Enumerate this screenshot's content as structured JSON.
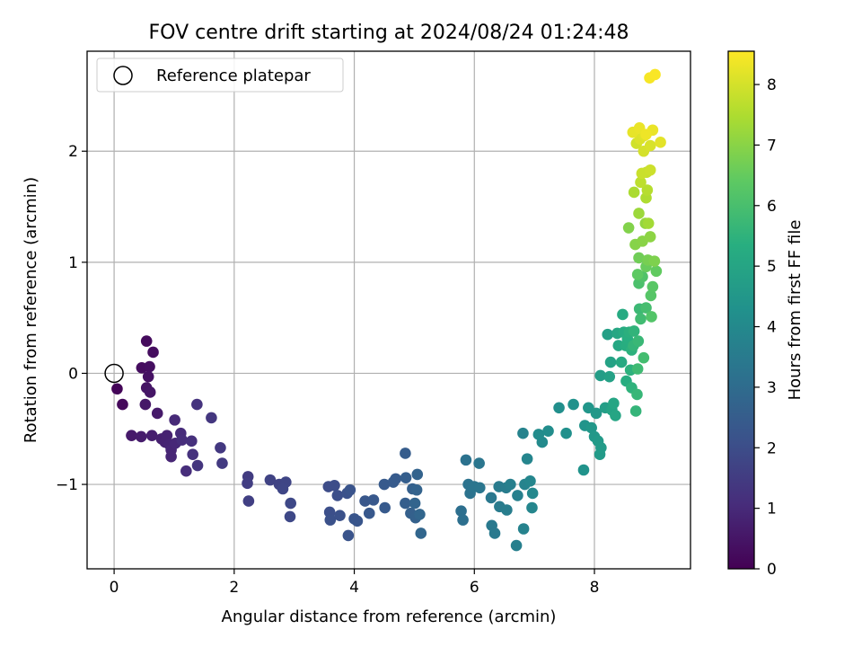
{
  "chart_data": {
    "type": "scatter",
    "title": "FOV centre drift starting at 2024/08/24 01:24:48",
    "xlabel": "Angular distance from reference (arcmin)",
    "ylabel": "Rotation from reference (arcmin)",
    "colorbar_label": "Hours from first FF file",
    "colormap": "viridis",
    "xlim": [
      -0.45,
      9.6
    ],
    "ylim": [
      -1.76,
      2.9
    ],
    "clim": [
      0,
      8.55
    ],
    "xticks": [
      0,
      2,
      4,
      6,
      8
    ],
    "yticks": [
      -1,
      0,
      1,
      2
    ],
    "colorbar_ticks": [
      0,
      1,
      2,
      3,
      4,
      5,
      6,
      7,
      8
    ],
    "grid": true,
    "legend": {
      "placement": "top-left",
      "entries": [
        "Reference platepar"
      ]
    },
    "reference_point": {
      "x": 0,
      "y": 0
    },
    "points": [
      [
        0.05,
        -0.14,
        0.1
      ],
      [
        0.14,
        -0.28,
        0.2
      ],
      [
        0.54,
        0.29,
        0.25
      ],
      [
        0.65,
        0.19,
        0.3
      ],
      [
        0.46,
        0.05,
        0.3
      ],
      [
        0.59,
        0.06,
        0.35
      ],
      [
        0.57,
        -0.03,
        0.4
      ],
      [
        0.54,
        -0.13,
        0.45
      ],
      [
        0.6,
        -0.17,
        0.5
      ],
      [
        0.52,
        -0.28,
        0.55
      ],
      [
        0.72,
        -0.36,
        0.6
      ],
      [
        0.29,
        -0.56,
        0.6
      ],
      [
        0.45,
        -0.57,
        0.65
      ],
      [
        0.63,
        -0.56,
        0.7
      ],
      [
        0.79,
        -0.59,
        0.75
      ],
      [
        0.85,
        -0.62,
        0.8
      ],
      [
        0.88,
        -0.56,
        0.8
      ],
      [
        0.92,
        -0.64,
        0.85
      ],
      [
        0.95,
        -0.69,
        0.9
      ],
      [
        0.95,
        -0.75,
        0.9
      ],
      [
        1.02,
        -0.63,
        0.95
      ],
      [
        1.01,
        -0.42,
        1.0
      ],
      [
        1.11,
        -0.54,
        1.05
      ],
      [
        1.13,
        -0.6,
        1.1
      ],
      [
        1.2,
        -0.88,
        1.1
      ],
      [
        1.29,
        -0.61,
        1.15
      ],
      [
        1.31,
        -0.73,
        1.2
      ],
      [
        1.38,
        -0.28,
        1.25
      ],
      [
        1.39,
        -0.83,
        1.3
      ],
      [
        1.62,
        -0.4,
        1.35
      ],
      [
        1.77,
        -0.67,
        1.4
      ],
      [
        1.8,
        -0.81,
        1.45
      ],
      [
        2.23,
        -0.93,
        1.5
      ],
      [
        2.22,
        -0.99,
        1.55
      ],
      [
        2.24,
        -1.15,
        1.6
      ],
      [
        2.6,
        -0.96,
        1.7
      ],
      [
        2.75,
        -1.0,
        1.7
      ],
      [
        2.86,
        -0.98,
        1.75
      ],
      [
        2.81,
        -1.04,
        1.8
      ],
      [
        2.94,
        -1.17,
        1.85
      ],
      [
        2.93,
        -1.29,
        1.85
      ],
      [
        3.57,
        -1.02,
        1.95
      ],
      [
        3.67,
        -1.01,
        2.0
      ],
      [
        3.72,
        -1.1,
        2.05
      ],
      [
        3.59,
        -1.25,
        2.05
      ],
      [
        3.6,
        -1.32,
        2.1
      ],
      [
        3.76,
        -1.28,
        2.1
      ],
      [
        3.88,
        -1.08,
        2.15
      ],
      [
        3.93,
        -1.05,
        2.2
      ],
      [
        3.9,
        -1.46,
        2.2
      ],
      [
        4.0,
        -1.31,
        2.25
      ],
      [
        4.05,
        -1.33,
        2.25
      ],
      [
        4.18,
        -1.15,
        2.3
      ],
      [
        4.32,
        -1.14,
        2.35
      ],
      [
        4.25,
        -1.26,
        2.35
      ],
      [
        4.5,
        -1.0,
        2.4
      ],
      [
        4.51,
        -1.21,
        2.4
      ],
      [
        4.69,
        -0.95,
        2.45
      ],
      [
        4.65,
        -0.98,
        2.45
      ],
      [
        4.85,
        -0.72,
        2.5
      ],
      [
        4.86,
        -0.94,
        2.55
      ],
      [
        4.85,
        -1.17,
        2.55
      ],
      [
        4.97,
        -1.04,
        2.6
      ],
      [
        4.94,
        -1.26,
        2.6
      ],
      [
        5.02,
        -1.3,
        2.65
      ],
      [
        5.05,
        -0.91,
        2.7
      ],
      [
        5.04,
        -1.05,
        2.7
      ],
      [
        5.01,
        -1.17,
        2.75
      ],
      [
        5.09,
        -1.27,
        2.8
      ],
      [
        5.11,
        -1.44,
        2.8
      ],
      [
        5.78,
        -1.24,
        3.1
      ],
      [
        5.81,
        -1.32,
        3.1
      ],
      [
        5.86,
        -0.78,
        3.2
      ],
      [
        5.9,
        -1.0,
        3.25
      ],
      [
        5.93,
        -1.08,
        3.25
      ],
      [
        6.0,
        -1.02,
        3.3
      ],
      [
        6.08,
        -0.81,
        3.35
      ],
      [
        6.09,
        -1.03,
        3.35
      ],
      [
        6.28,
        -1.12,
        3.4
      ],
      [
        6.29,
        -1.37,
        3.45
      ],
      [
        6.34,
        -1.44,
        3.45
      ],
      [
        6.41,
        -1.02,
        3.5
      ],
      [
        6.42,
        -1.2,
        3.5
      ],
      [
        6.53,
        -1.03,
        3.55
      ],
      [
        6.54,
        -1.23,
        3.6
      ],
      [
        6.6,
        -1.0,
        3.65
      ],
      [
        6.7,
        -1.55,
        3.65
      ],
      [
        6.72,
        -1.1,
        3.7
      ],
      [
        6.82,
        -1.4,
        3.75
      ],
      [
        6.81,
        -0.54,
        3.8
      ],
      [
        6.84,
        -1.0,
        3.8
      ],
      [
        6.88,
        -0.77,
        3.85
      ],
      [
        6.93,
        -0.97,
        3.9
      ],
      [
        6.96,
        -1.21,
        3.9
      ],
      [
        6.97,
        -1.08,
        3.95
      ],
      [
        7.13,
        -0.62,
        4.05
      ],
      [
        7.07,
        -0.55,
        4.1
      ],
      [
        7.23,
        -0.52,
        4.15
      ],
      [
        7.41,
        -0.31,
        4.2
      ],
      [
        7.53,
        -0.54,
        4.25
      ],
      [
        7.65,
        -0.28,
        4.3
      ],
      [
        7.82,
        -0.87,
        4.35
      ],
      [
        7.84,
        -0.47,
        4.4
      ],
      [
        7.9,
        -0.31,
        4.45
      ],
      [
        7.95,
        -0.49,
        4.5
      ],
      [
        8.0,
        -0.57,
        4.55
      ],
      [
        8.03,
        -0.36,
        4.55
      ],
      [
        8.06,
        -0.61,
        4.6
      ],
      [
        8.09,
        -0.73,
        4.6
      ],
      [
        8.11,
        -0.67,
        4.65
      ],
      [
        8.1,
        -0.02,
        4.7
      ],
      [
        8.18,
        -0.31,
        4.75
      ],
      [
        8.22,
        0.35,
        4.8
      ],
      [
        8.25,
        -0.03,
        4.85
      ],
      [
        8.27,
        0.1,
        4.9
      ],
      [
        8.29,
        -0.33,
        4.95
      ],
      [
        8.35,
        -0.38,
        5.0
      ],
      [
        8.32,
        -0.27,
        5.0
      ],
      [
        8.38,
        0.36,
        5.05
      ],
      [
        8.4,
        0.25,
        5.1
      ],
      [
        8.45,
        0.1,
        5.15
      ],
      [
        8.47,
        0.53,
        5.2
      ],
      [
        8.49,
        0.37,
        5.25
      ],
      [
        8.52,
        0.25,
        5.3
      ],
      [
        8.53,
        -0.07,
        5.3
      ],
      [
        8.55,
        0.31,
        5.35
      ],
      [
        8.58,
        0.37,
        5.4
      ],
      [
        8.6,
        0.03,
        5.45
      ],
      [
        8.62,
        0.21,
        5.45
      ],
      [
        8.62,
        -0.13,
        5.5
      ],
      [
        8.66,
        0.38,
        5.55
      ],
      [
        8.65,
        0.25,
        5.6
      ],
      [
        8.69,
        -0.34,
        5.6
      ],
      [
        8.71,
        -0.19,
        5.65
      ],
      [
        8.73,
        0.29,
        5.7
      ],
      [
        8.75,
        0.58,
        5.75
      ],
      [
        8.72,
        0.04,
        5.8
      ],
      [
        8.77,
        0.49,
        5.85
      ],
      [
        8.82,
        0.14,
        5.9
      ],
      [
        8.86,
        0.59,
        5.95
      ],
      [
        8.74,
        0.81,
        6.05
      ],
      [
        8.8,
        0.87,
        6.15
      ],
      [
        8.95,
        0.51,
        6.2
      ],
      [
        8.94,
        0.7,
        6.25
      ],
      [
        8.97,
        0.78,
        6.3
      ],
      [
        8.72,
        0.89,
        6.4
      ],
      [
        9.03,
        0.92,
        6.45
      ],
      [
        8.86,
        0.96,
        6.55
      ],
      [
        8.74,
        1.04,
        6.65
      ],
      [
        8.89,
        1.02,
        6.75
      ],
      [
        9.0,
        1.01,
        6.85
      ],
      [
        8.57,
        1.31,
        6.9
      ],
      [
        8.68,
        1.16,
        6.95
      ],
      [
        8.8,
        1.19,
        7.0
      ],
      [
        8.93,
        1.23,
        7.05
      ],
      [
        8.85,
        1.35,
        7.15
      ],
      [
        8.74,
        1.44,
        7.25
      ],
      [
        8.9,
        1.35,
        7.35
      ],
      [
        8.66,
        1.63,
        7.45
      ],
      [
        8.86,
        1.58,
        7.5
      ],
      [
        8.88,
        1.65,
        7.6
      ],
      [
        8.77,
        1.72,
        7.7
      ],
      [
        8.87,
        1.81,
        7.8
      ],
      [
        8.79,
        1.8,
        7.85
      ],
      [
        8.93,
        1.83,
        7.9
      ],
      [
        8.7,
        2.07,
        7.95
      ],
      [
        8.82,
        2.0,
        8.0
      ],
      [
        8.93,
        2.05,
        8.05
      ],
      [
        8.76,
        2.11,
        8.1
      ],
      [
        8.83,
        2.14,
        8.15
      ],
      [
        9.1,
        2.08,
        8.2
      ],
      [
        8.64,
        2.17,
        8.25
      ],
      [
        8.75,
        2.21,
        8.3
      ],
      [
        8.97,
        2.19,
        8.3
      ],
      [
        8.86,
        2.15,
        8.35
      ],
      [
        8.92,
        2.66,
        8.45
      ],
      [
        9.01,
        2.69,
        8.5
      ]
    ]
  }
}
